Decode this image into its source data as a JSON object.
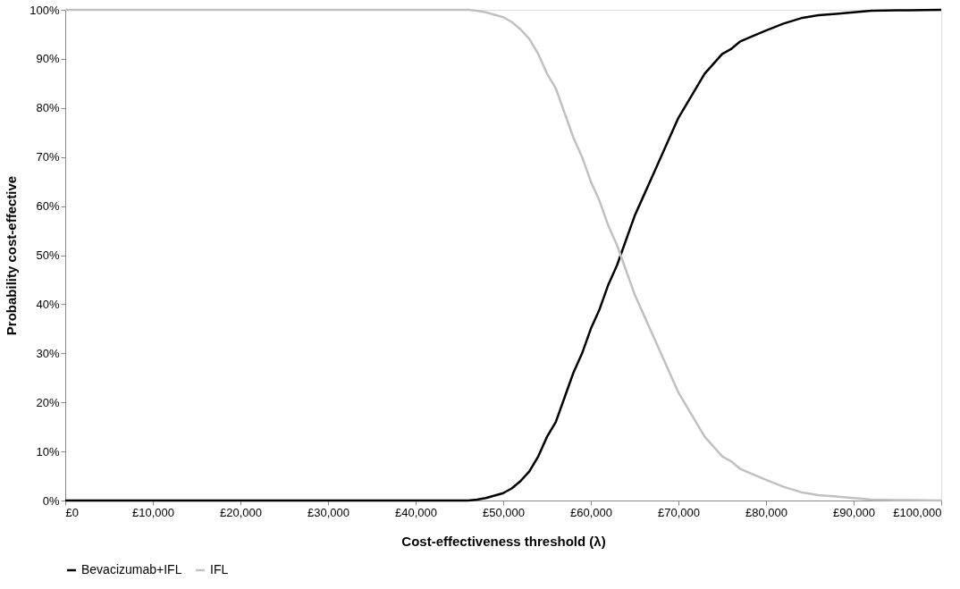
{
  "chart_data": {
    "type": "line",
    "xlabel": "Cost-effectiveness threshold (λ)",
    "ylabel": "Probability cost-effective",
    "x": [
      0,
      10000,
      20000,
      30000,
      40000,
      44000,
      46000,
      47000,
      48000,
      49000,
      50000,
      51000,
      52000,
      53000,
      54000,
      55000,
      56000,
      57000,
      58000,
      59000,
      60000,
      61000,
      62000,
      63000,
      64000,
      65000,
      66000,
      67000,
      68000,
      69000,
      70000,
      71000,
      72000,
      73000,
      74000,
      75000,
      76000,
      77000,
      78000,
      80000,
      82000,
      84000,
      86000,
      88000,
      90000,
      92000,
      95000,
      100000
    ],
    "series": [
      {
        "name": "Bevacizumab+IFL",
        "color": "#000000",
        "values": [
          0,
          0,
          0,
          0,
          0,
          0,
          0,
          0.2,
          0.5,
          1,
          1.5,
          2.5,
          4,
          6,
          9,
          13,
          16,
          21,
          26,
          30,
          35,
          39,
          44,
          48,
          53,
          58,
          62,
          66,
          70,
          74,
          78,
          81,
          84,
          87,
          89,
          91,
          92,
          93.5,
          94.3,
          95.8,
          97.2,
          98.3,
          98.9,
          99.2,
          99.5,
          99.8,
          99.9,
          100
        ]
      },
      {
        "name": "IFL",
        "color": "#c0c0c0",
        "values": [
          100,
          100,
          100,
          100,
          100,
          100,
          100,
          99.8,
          99.5,
          99,
          98.5,
          97.5,
          96,
          94,
          91,
          87,
          84,
          79,
          74,
          70,
          65,
          61,
          56,
          52,
          47,
          42,
          38,
          34,
          30,
          26,
          22,
          19,
          16,
          13,
          11,
          9,
          8,
          6.5,
          5.7,
          4.2,
          2.8,
          1.7,
          1.1,
          0.8,
          0.5,
          0.2,
          0.1,
          0
        ]
      }
    ],
    "xlim": [
      0,
      100000
    ],
    "ylim": [
      0,
      100
    ],
    "xticks": [
      {
        "value": 0,
        "label": "£0"
      },
      {
        "value": 10000,
        "label": "£10,000"
      },
      {
        "value": 20000,
        "label": "£20,000"
      },
      {
        "value": 30000,
        "label": "£30,000"
      },
      {
        "value": 40000,
        "label": "£40,000"
      },
      {
        "value": 50000,
        "label": "£50,000"
      },
      {
        "value": 60000,
        "label": "£60,000"
      },
      {
        "value": 70000,
        "label": "£70,000"
      },
      {
        "value": 80000,
        "label": "£80,000"
      },
      {
        "value": 90000,
        "label": "£90,000"
      },
      {
        "value": 100000,
        "label": "£100,000"
      }
    ],
    "yticks": [
      {
        "value": 0,
        "label": "0%"
      },
      {
        "value": 10,
        "label": "10%"
      },
      {
        "value": 20,
        "label": "20%"
      },
      {
        "value": 30,
        "label": "30%"
      },
      {
        "value": 40,
        "label": "40%"
      },
      {
        "value": 50,
        "label": "50%"
      },
      {
        "value": 60,
        "label": "60%"
      },
      {
        "value": 70,
        "label": "70%"
      },
      {
        "value": 80,
        "label": "80%"
      },
      {
        "value": 90,
        "label": "90%"
      },
      {
        "value": 100,
        "label": "100%"
      }
    ],
    "grid": false,
    "legend": "bottom",
    "marker": "none",
    "line_style": "solid"
  }
}
